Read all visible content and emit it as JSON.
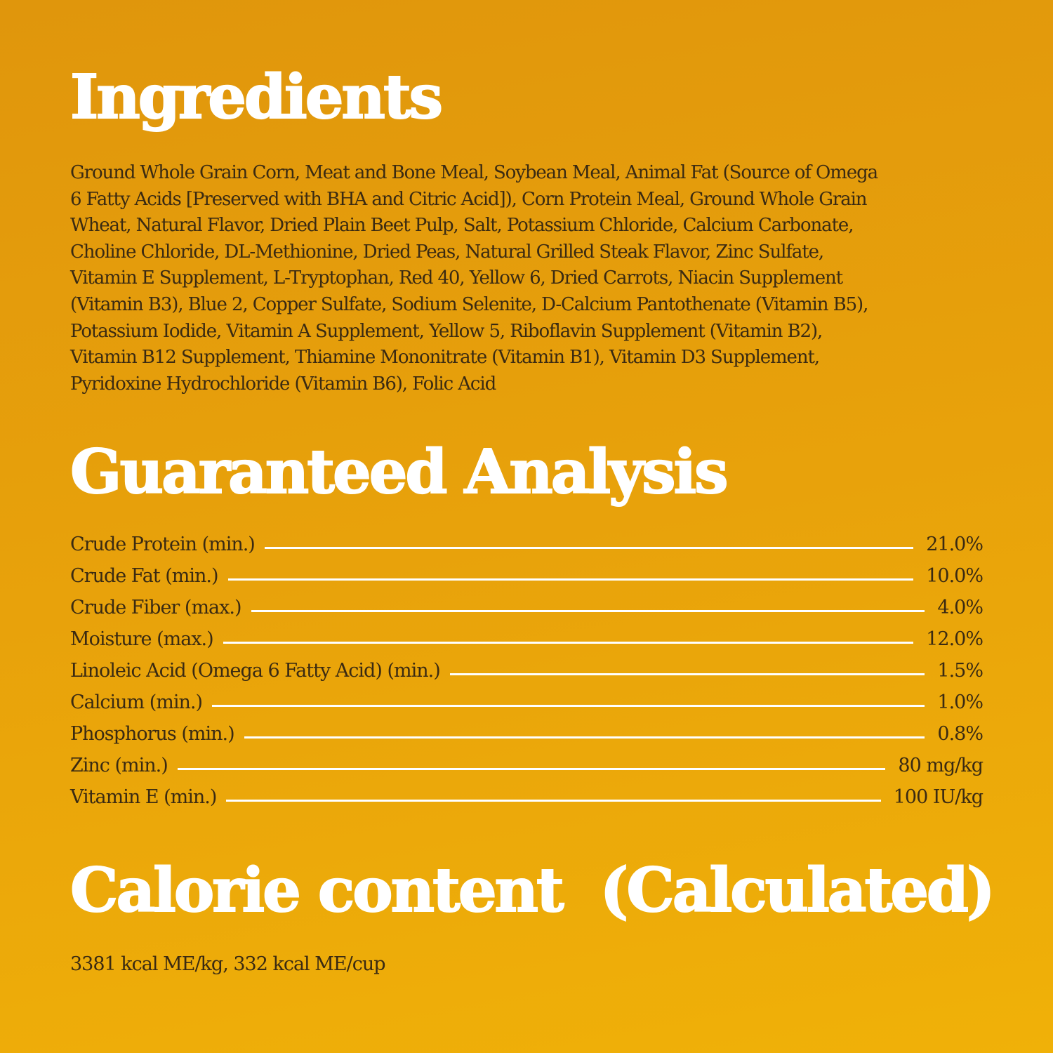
{
  "ingredients": {
    "title": "Ingredients",
    "lines": [
      "Ground Whole Grain Corn, Meat and Bone Meal, Soybean Meal, Animal Fat (Source of Omega",
      "6 Fatty Acids [Preserved with BHA and Citric Acid]), Corn Protein Meal, Ground Whole Grain",
      "Wheat, Natural Flavor, Dried Plain Beet Pulp, Salt, Potassium Chloride, Calcium Carbonate,",
      "Choline Chloride, DL-Methionine, Dried Peas, Natural Grilled Steak Flavor, Zinc Sulfate,",
      "Vitamin E Supplement, L-Tryptophan, Red 40, Yellow 6, Dried Carrots, Niacin Supplement",
      "(Vitamin B3), Blue 2, Copper Sulfate, Sodium Selenite, D-Calcium Pantothenate (Vitamin B5),",
      "Potassium Iodide, Vitamin A Supplement, Yellow 5, Riboflavin Supplement (Vitamin B2),",
      "Vitamin B12 Supplement, Thiamine Mononitrate (Vitamin B1), Vitamin D3 Supplement,",
      "Pyridoxine Hydrochloride (Vitamin B6), Folic Acid"
    ]
  },
  "analysis": {
    "title": "Guaranteed Analysis",
    "rows": [
      {
        "label": "Crude Protein (min.)",
        "value": "21.0%"
      },
      {
        "label": "Crude Fat (min.)",
        "value": "10.0%"
      },
      {
        "label": "Crude Fiber (max.)",
        "value": "4.0%"
      },
      {
        "label": "Moisture (max.)",
        "value": "12.0%"
      },
      {
        "label": "Linoleic Acid (Omega 6 Fatty Acid) (min.)",
        "value": "1.5%"
      },
      {
        "label": "Calcium (min.)",
        "value": "1.0%"
      },
      {
        "label": "Phosphorus (min.)",
        "value": "0.8%"
      },
      {
        "label": "Zinc (min.)",
        "value": "80 mg/kg"
      },
      {
        "label": "Vitamin E (min.)",
        "value": "100 IU/kg"
      }
    ]
  },
  "calorie": {
    "title": "Calorie content  (Calculated)",
    "text": "3381 kcal ME/kg, 332 kcal ME/cup"
  },
  "colors": {
    "background": "#e8a20b",
    "heading": "#ffffff",
    "text": "#3a2a12"
  }
}
